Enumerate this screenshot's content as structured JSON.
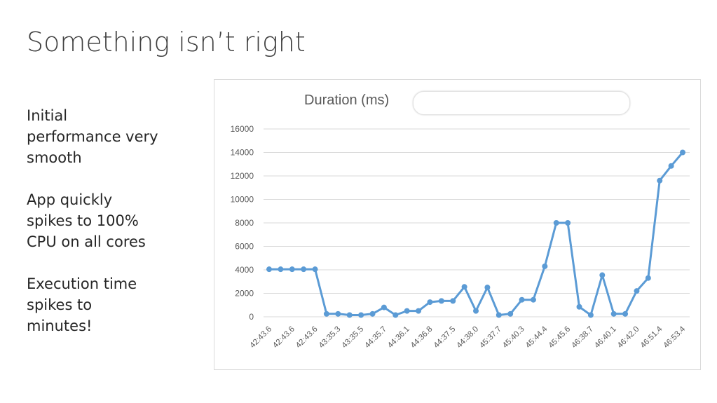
{
  "slide": {
    "title": "Something isn’t right",
    "bullets": [
      "Initial\nperformance very\nsmooth",
      "App quickly\nspikes to 100%\nCPU on all cores",
      "Execution time\nspikes to\nminutes!"
    ]
  },
  "chart_data": {
    "type": "line",
    "title": "Duration (ms)",
    "xlabel": "",
    "ylabel": "",
    "ylim": [
      0,
      16000
    ],
    "yticks": [
      0,
      2000,
      4000,
      6000,
      8000,
      10000,
      12000,
      14000,
      16000
    ],
    "grid": true,
    "legend": "none",
    "color": "#5b9bd5",
    "x_tick_labels": [
      "42:43.6",
      "42:43.6",
      "42:43.6",
      "43:35.3",
      "43:35.5",
      "44:35.7",
      "44:36.1",
      "44:36.8",
      "44:37.5",
      "44:38.0",
      "45:37.7",
      "45:40.3",
      "45:44.4",
      "45:45.6",
      "46:38.7",
      "46:40.1",
      "46:42.0",
      "46:51.4",
      "46:53.4"
    ],
    "values": [
      4050,
      4050,
      4050,
      4050,
      4050,
      250,
      250,
      150,
      150,
      250,
      800,
      150,
      500,
      500,
      1250,
      1350,
      1350,
      2550,
      500,
      2500,
      150,
      250,
      1450,
      1450,
      4300,
      8000,
      8000,
      850,
      150,
      3550,
      250,
      250,
      2200,
      3300,
      11600,
      12850,
      14000
    ]
  }
}
